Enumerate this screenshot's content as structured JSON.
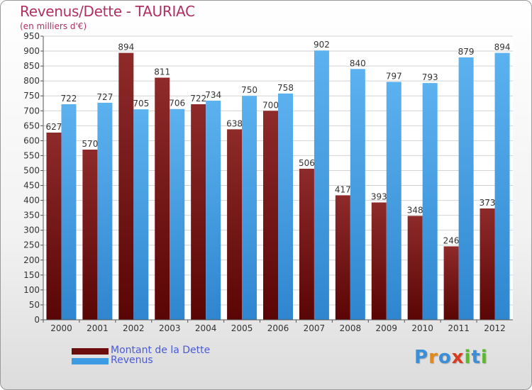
{
  "header": {
    "title": "Revenus/Dette - TAURIAC",
    "subtitle": "(en milliers d'€)"
  },
  "chart_data": {
    "type": "bar",
    "categories": [
      "2000",
      "2001",
      "2002",
      "2003",
      "2004",
      "2005",
      "2006",
      "2007",
      "2008",
      "2009",
      "2010",
      "2011",
      "2012"
    ],
    "series": [
      {
        "name": "Montant de la Dette",
        "color": "#7a1515",
        "values": [
          627,
          570,
          894,
          811,
          722,
          638,
          700,
          506,
          417,
          393,
          348,
          246,
          373
        ]
      },
      {
        "name": "Revenus",
        "color": "#4aa3e6",
        "values": [
          722,
          727,
          705,
          706,
          734,
          750,
          758,
          902,
          840,
          797,
          793,
          879,
          894
        ]
      }
    ],
    "ylim": [
      0,
      950
    ],
    "yticks": [
      0,
      50,
      100,
      150,
      200,
      250,
      300,
      350,
      400,
      450,
      500,
      550,
      600,
      650,
      700,
      750,
      800,
      850,
      900,
      950
    ],
    "grid": true,
    "legend_position": "bottom-left"
  },
  "legend": {
    "items": [
      {
        "label": "Montant de la Dette",
        "color": "#6b0d0d"
      },
      {
        "label": "Revenus",
        "color": "#3d9be3"
      }
    ]
  },
  "logo": {
    "letters": [
      "P",
      "r",
      "o",
      "x",
      "i",
      "t",
      "i"
    ],
    "colors": [
      "#3b8fd8",
      "#e08a1e",
      "#3b8fd8",
      "#d83b1e",
      "#5cb82e",
      "#3b8fd8",
      "#5cb82e"
    ]
  }
}
